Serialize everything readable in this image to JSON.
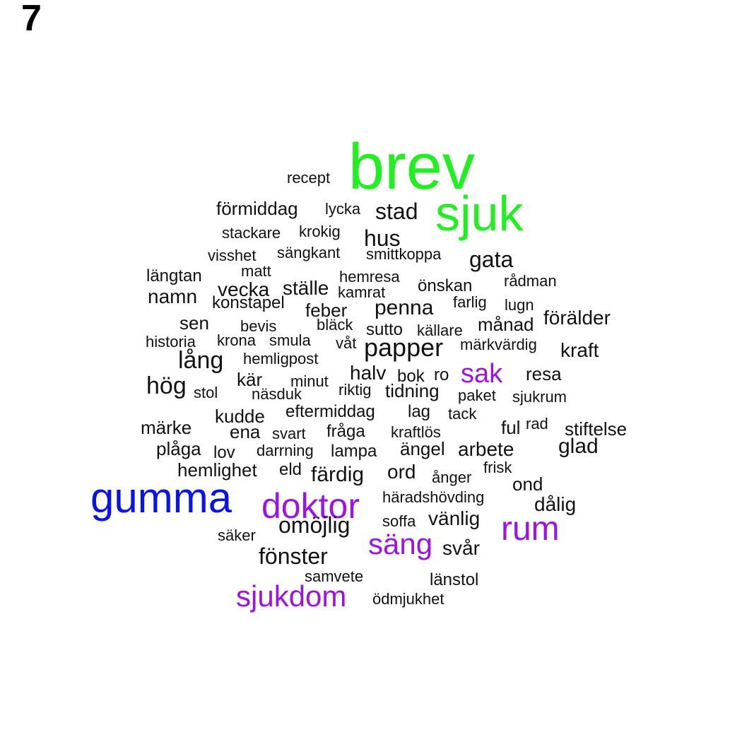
{
  "panel_label": "7",
  "colors": {
    "green": "#22ee22",
    "purple": "#9b14e0",
    "blue": "#0a14e8",
    "black": "#111111"
  },
  "words": [
    {
      "t": "brev",
      "c": "green"
    },
    {
      "t": "sjuk",
      "c": "green"
    },
    {
      "t": "gumma",
      "c": "blue"
    },
    {
      "t": "doktor",
      "c": "purple"
    },
    {
      "t": "rum",
      "c": "purple"
    },
    {
      "t": "säng",
      "c": "purple"
    },
    {
      "t": "sjukdom",
      "c": "purple"
    },
    {
      "t": "sak",
      "c": "purple"
    },
    {
      "t": "recept",
      "c": "black"
    },
    {
      "t": "förmiddag",
      "c": "black"
    },
    {
      "t": "lycka",
      "c": "black"
    },
    {
      "t": "stad",
      "c": "black"
    },
    {
      "t": "stackare",
      "c": "black"
    },
    {
      "t": "krokig",
      "c": "black"
    },
    {
      "t": "hus",
      "c": "black"
    },
    {
      "t": "visshet",
      "c": "black"
    },
    {
      "t": "sängkant",
      "c": "black"
    },
    {
      "t": "smittkoppa",
      "c": "black"
    },
    {
      "t": "gata",
      "c": "black"
    },
    {
      "t": "längtan",
      "c": "black"
    },
    {
      "t": "matt",
      "c": "black"
    },
    {
      "t": "hemresa",
      "c": "black"
    },
    {
      "t": "rådman",
      "c": "black"
    },
    {
      "t": "önskan",
      "c": "black"
    },
    {
      "t": "vecka",
      "c": "black"
    },
    {
      "t": "ställe",
      "c": "black"
    },
    {
      "t": "kamrat",
      "c": "black"
    },
    {
      "t": "namn",
      "c": "black"
    },
    {
      "t": "farlig",
      "c": "black"
    },
    {
      "t": "lugn",
      "c": "black"
    },
    {
      "t": "konstapel",
      "c": "black"
    },
    {
      "t": "penna",
      "c": "black"
    },
    {
      "t": "feber",
      "c": "black"
    },
    {
      "t": "förälder",
      "c": "black"
    },
    {
      "t": "sen",
      "c": "black"
    },
    {
      "t": "månad",
      "c": "black"
    },
    {
      "t": "bläck",
      "c": "black"
    },
    {
      "t": "bevis",
      "c": "black"
    },
    {
      "t": "sutto",
      "c": "black"
    },
    {
      "t": "källare",
      "c": "black"
    },
    {
      "t": "historia",
      "c": "black"
    },
    {
      "t": "krona",
      "c": "black"
    },
    {
      "t": "smula",
      "c": "black"
    },
    {
      "t": "våt",
      "c": "black"
    },
    {
      "t": "papper",
      "c": "black"
    },
    {
      "t": "märkvärdig",
      "c": "black"
    },
    {
      "t": "kraft",
      "c": "black"
    },
    {
      "t": "lång",
      "c": "black"
    },
    {
      "t": "hemligpost",
      "c": "black"
    },
    {
      "t": "halv",
      "c": "black"
    },
    {
      "t": "ro",
      "c": "black"
    },
    {
      "t": "resa",
      "c": "black"
    },
    {
      "t": "kär",
      "c": "black"
    },
    {
      "t": "bok",
      "c": "black"
    },
    {
      "t": "minut",
      "c": "black"
    },
    {
      "t": "hög",
      "c": "black"
    },
    {
      "t": "riktig",
      "c": "black"
    },
    {
      "t": "tidning",
      "c": "black"
    },
    {
      "t": "stol",
      "c": "black"
    },
    {
      "t": "näsduk",
      "c": "black"
    },
    {
      "t": "paket",
      "c": "black"
    },
    {
      "t": "sjukrum",
      "c": "black"
    },
    {
      "t": "kudde",
      "c": "black"
    },
    {
      "t": "eftermiddag",
      "c": "black"
    },
    {
      "t": "lag",
      "c": "black"
    },
    {
      "t": "tack",
      "c": "black"
    },
    {
      "t": "märke",
      "c": "black"
    },
    {
      "t": "ful",
      "c": "black"
    },
    {
      "t": "rad",
      "c": "black"
    },
    {
      "t": "stiftelse",
      "c": "black"
    },
    {
      "t": "ena",
      "c": "black"
    },
    {
      "t": "svart",
      "c": "black"
    },
    {
      "t": "fråga",
      "c": "black"
    },
    {
      "t": "kraftlös",
      "c": "black"
    },
    {
      "t": "glad",
      "c": "black"
    },
    {
      "t": "plåga",
      "c": "black"
    },
    {
      "t": "ängel",
      "c": "black"
    },
    {
      "t": "arbete",
      "c": "black"
    },
    {
      "t": "lov",
      "c": "black"
    },
    {
      "t": "darrning",
      "c": "black"
    },
    {
      "t": "lampa",
      "c": "black"
    },
    {
      "t": "hemlighet",
      "c": "black"
    },
    {
      "t": "eld",
      "c": "black"
    },
    {
      "t": "frisk",
      "c": "black"
    },
    {
      "t": "färdig",
      "c": "black"
    },
    {
      "t": "ord",
      "c": "black"
    },
    {
      "t": "ånger",
      "c": "black"
    },
    {
      "t": "ond",
      "c": "black"
    },
    {
      "t": "häradshövding",
      "c": "black"
    },
    {
      "t": "dålig",
      "c": "black"
    },
    {
      "t": "soffa",
      "c": "black"
    },
    {
      "t": "vänlig",
      "c": "black"
    },
    {
      "t": "omöjlig",
      "c": "black"
    },
    {
      "t": "säker",
      "c": "black"
    },
    {
      "t": "svår",
      "c": "black"
    },
    {
      "t": "fönster",
      "c": "black"
    },
    {
      "t": "samvete",
      "c": "black"
    },
    {
      "t": "länstol",
      "c": "black"
    },
    {
      "t": "ödmjukhet",
      "c": "black"
    }
  ]
}
